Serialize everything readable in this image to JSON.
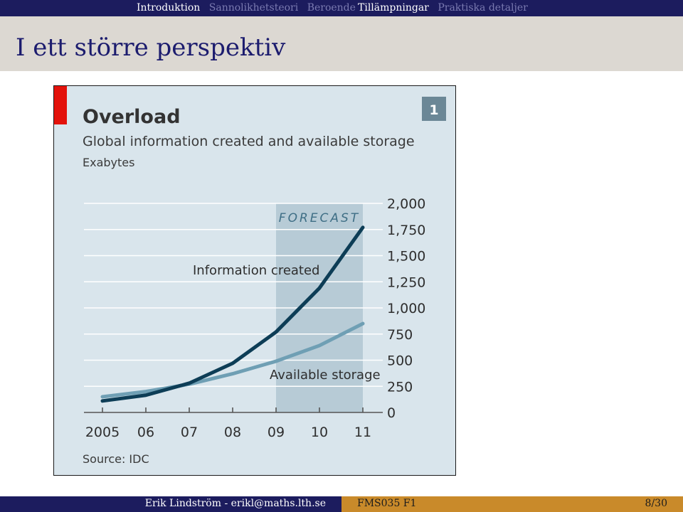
{
  "nav": {
    "left_items": [
      {
        "label": "Introduktion",
        "active": true
      },
      {
        "label": "Sannolikhetsteori",
        "active": false
      },
      {
        "label": "Beroende",
        "active": false
      }
    ],
    "right_items": [
      {
        "label": "Tillämpningar",
        "active": true
      },
      {
        "label": "Praktiska detaljer",
        "active": false
      }
    ]
  },
  "slide": {
    "title": "I ett större perspektiv"
  },
  "figure": {
    "badge": "1",
    "source": "Source: IDC",
    "forecast_label": "FORECAST",
    "accent_color": "#e3120b"
  },
  "chart_data": {
    "type": "line",
    "title": "Overload",
    "subtitle": "Global information created and available storage",
    "ylabel": "Exabytes",
    "x": [
      2005,
      2006,
      2007,
      2008,
      2009,
      2010,
      2011
    ],
    "x_tick_labels": [
      "2005",
      "06",
      "07",
      "08",
      "09",
      "10",
      "11"
    ],
    "y_tick_labels": [
      "0",
      "250",
      "500",
      "750",
      "1,000",
      "1,250",
      "1,500",
      "1,750",
      "2,000"
    ],
    "ylim": [
      0,
      2000
    ],
    "forecast_range": [
      2009,
      2011
    ],
    "grid": true,
    "series": [
      {
        "name": "Information created",
        "color": "#0d3d56",
        "values": [
          110,
          165,
          280,
          470,
          770,
          1190,
          1770
        ]
      },
      {
        "name": "Available storage",
        "color": "#6f9fb4",
        "values": [
          150,
          200,
          270,
          370,
          490,
          640,
          850
        ]
      }
    ]
  },
  "footer": {
    "author": "Erik Lindström - erikl@maths.lth.se",
    "course": "FMS035 F1",
    "page": "8/30"
  }
}
